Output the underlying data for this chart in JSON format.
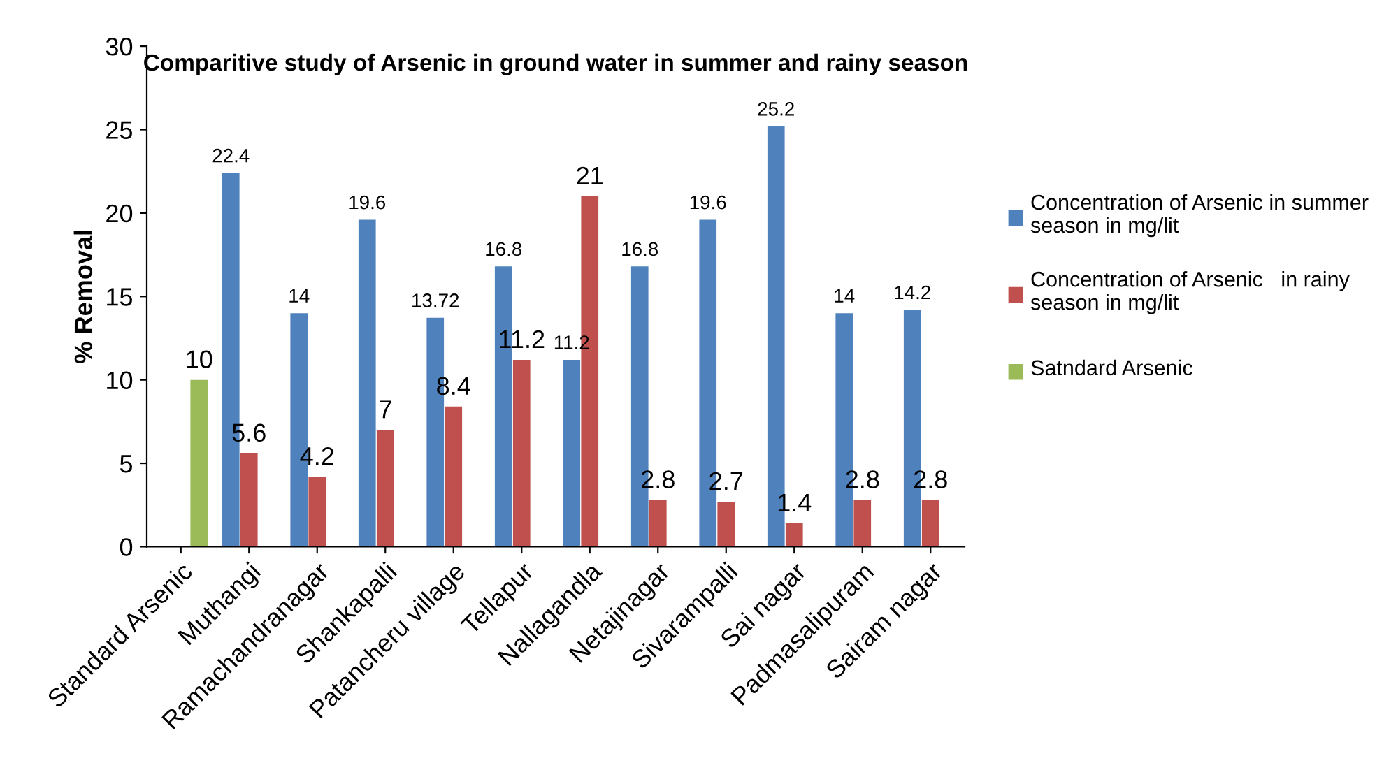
{
  "chart_data": {
    "type": "bar",
    "title": "Comparitive study of Arsenic in ground water in summer and rainy season",
    "ylabel": "% Removal",
    "categories": [
      "Standard Arsenic",
      "Muthangi",
      "Ramachandranagar",
      "Shankapalli",
      "Patancheru village",
      "Tellapur",
      "Nallagandla",
      "Netajinagar",
      "Sivarampalli",
      "Sai nagar",
      "Padmasalipuram",
      "Sairam nagar"
    ],
    "series": [
      {
        "name": "Concentration of Arsenic in summer season in mg/lit",
        "color": "#4f81bd",
        "values": [
          null,
          22.4,
          14,
          19.6,
          13.72,
          16.8,
          11.2,
          16.8,
          19.6,
          25.2,
          14,
          14.2
        ]
      },
      {
        "name": "Concentration of Arsenic   in rainy season in mg/lit",
        "color": "#c0504d",
        "values": [
          null,
          5.6,
          4.2,
          7,
          8.4,
          11.2,
          21,
          2.8,
          2.7,
          1.4,
          2.8,
          2.8
        ]
      },
      {
        "name": "Satndard Arsenic",
        "color": "#9bbb59",
        "values": [
          10,
          null,
          null,
          null,
          null,
          null,
          null,
          null,
          null,
          null,
          null,
          null
        ]
      }
    ],
    "ylim": [
      0,
      30
    ],
    "yticks": [
      0,
      5,
      10,
      15,
      20,
      25,
      30
    ],
    "data_labels": true,
    "grid": false,
    "legend": "right"
  }
}
